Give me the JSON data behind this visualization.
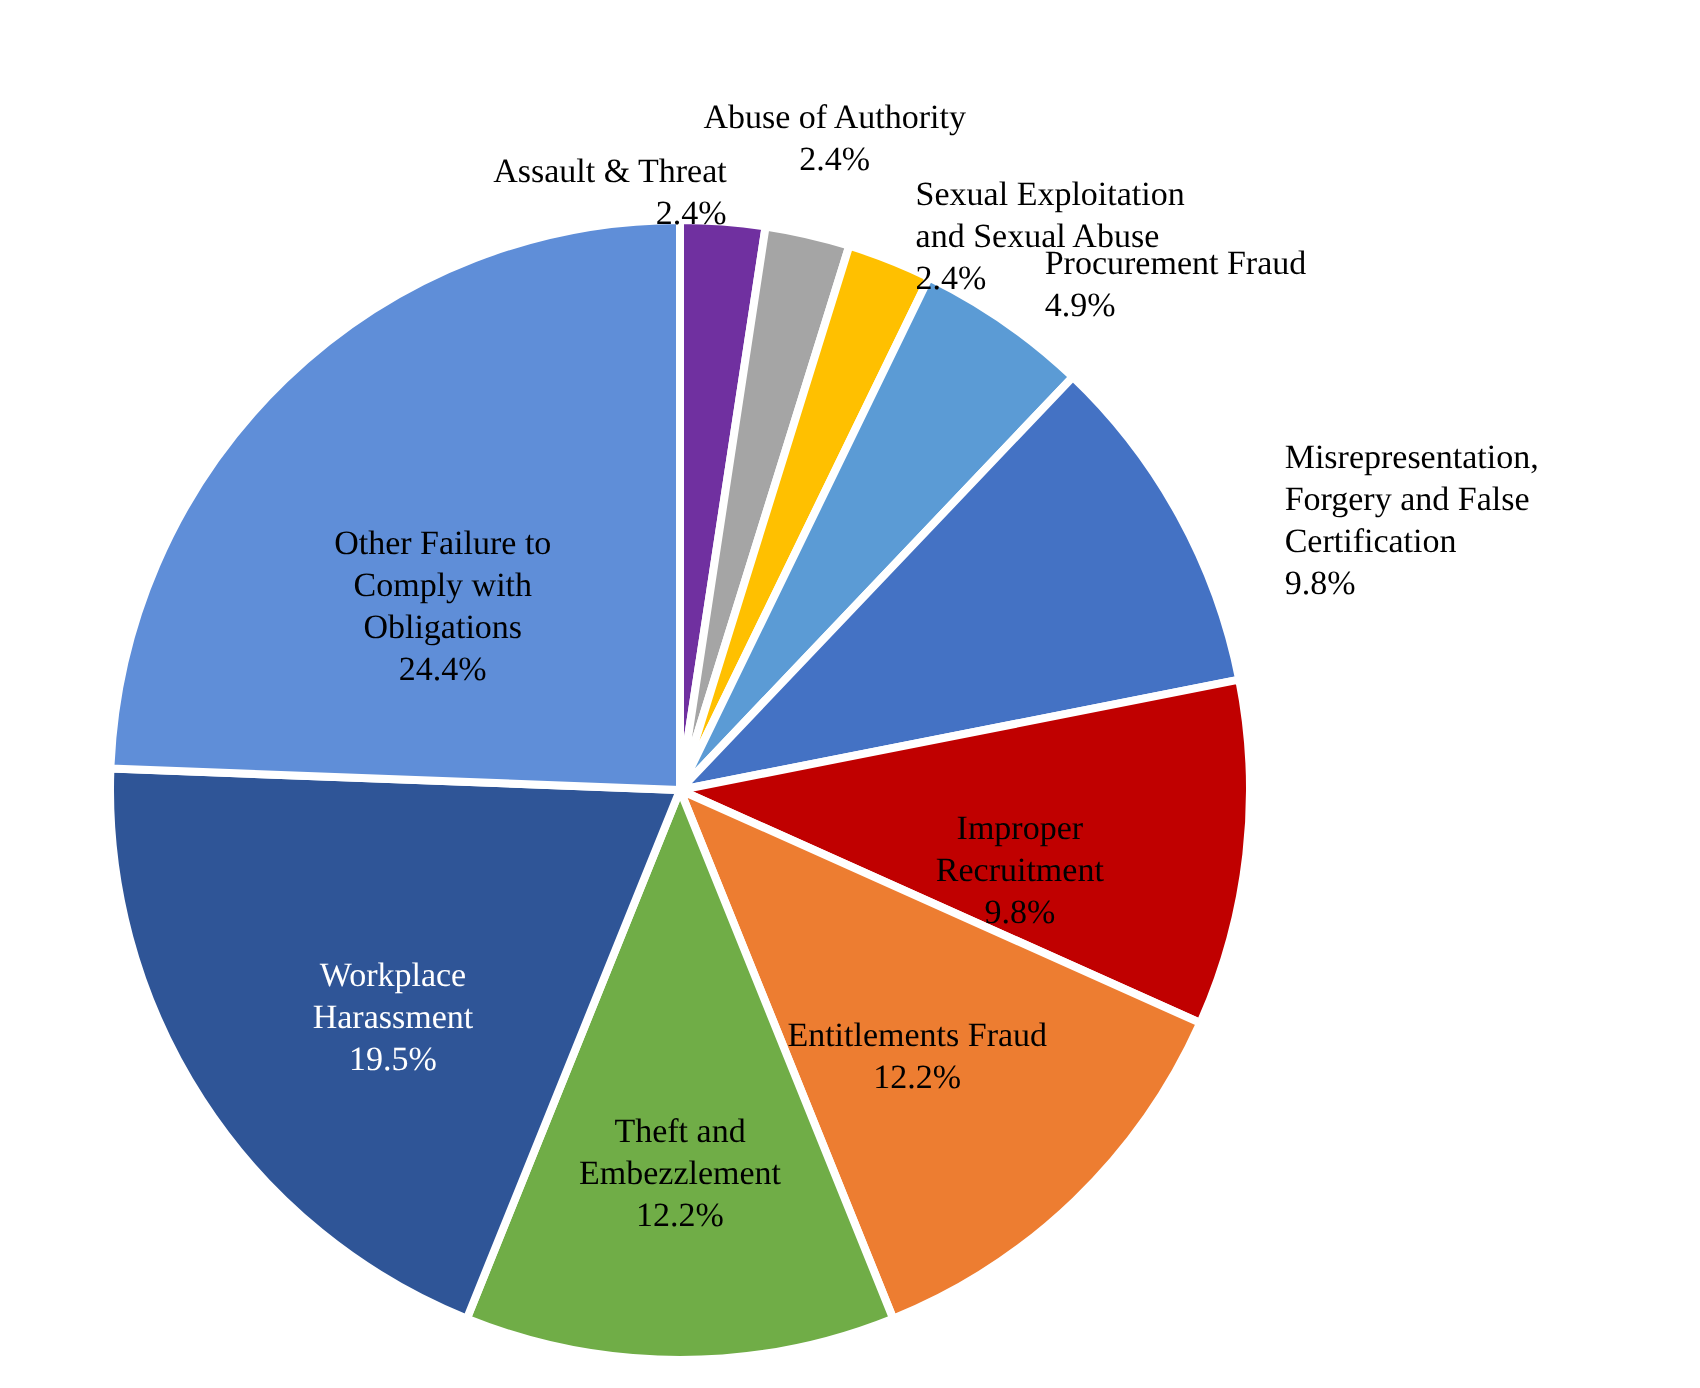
{
  "chart_data": {
    "type": "pie",
    "categories": [
      "Assault & Threat",
      "Abuse of Authority",
      "Sexual Exploitation and Sexual Abuse",
      "Procurement Fraud",
      "Misrepresentation, Forgery and False Certification",
      "Improper Recruitment",
      "Entitlements Fraud",
      "Theft and Embezzlement",
      "Workplace Harassment",
      "Other Failure to Comply with Obligations"
    ],
    "values": [
      2.4,
      2.4,
      2.4,
      4.9,
      9.8,
      9.8,
      12.2,
      12.2,
      19.5,
      24.4
    ],
    "colors": [
      "#7030a0",
      "#a5a5a5",
      "#ffc000",
      "#5b9bd5",
      "#4472c4",
      "#c00000",
      "#ed7d31",
      "#70ad47",
      "#2f5597",
      "#5f8ed8"
    ],
    "value_labels": [
      "2.4%",
      "2.4%",
      "2.4%",
      "4.9%",
      "9.8%",
      "9.8%",
      "12.2%",
      "12.2%",
      "19.5%",
      "24.4%"
    ],
    "legend": false
  }
}
